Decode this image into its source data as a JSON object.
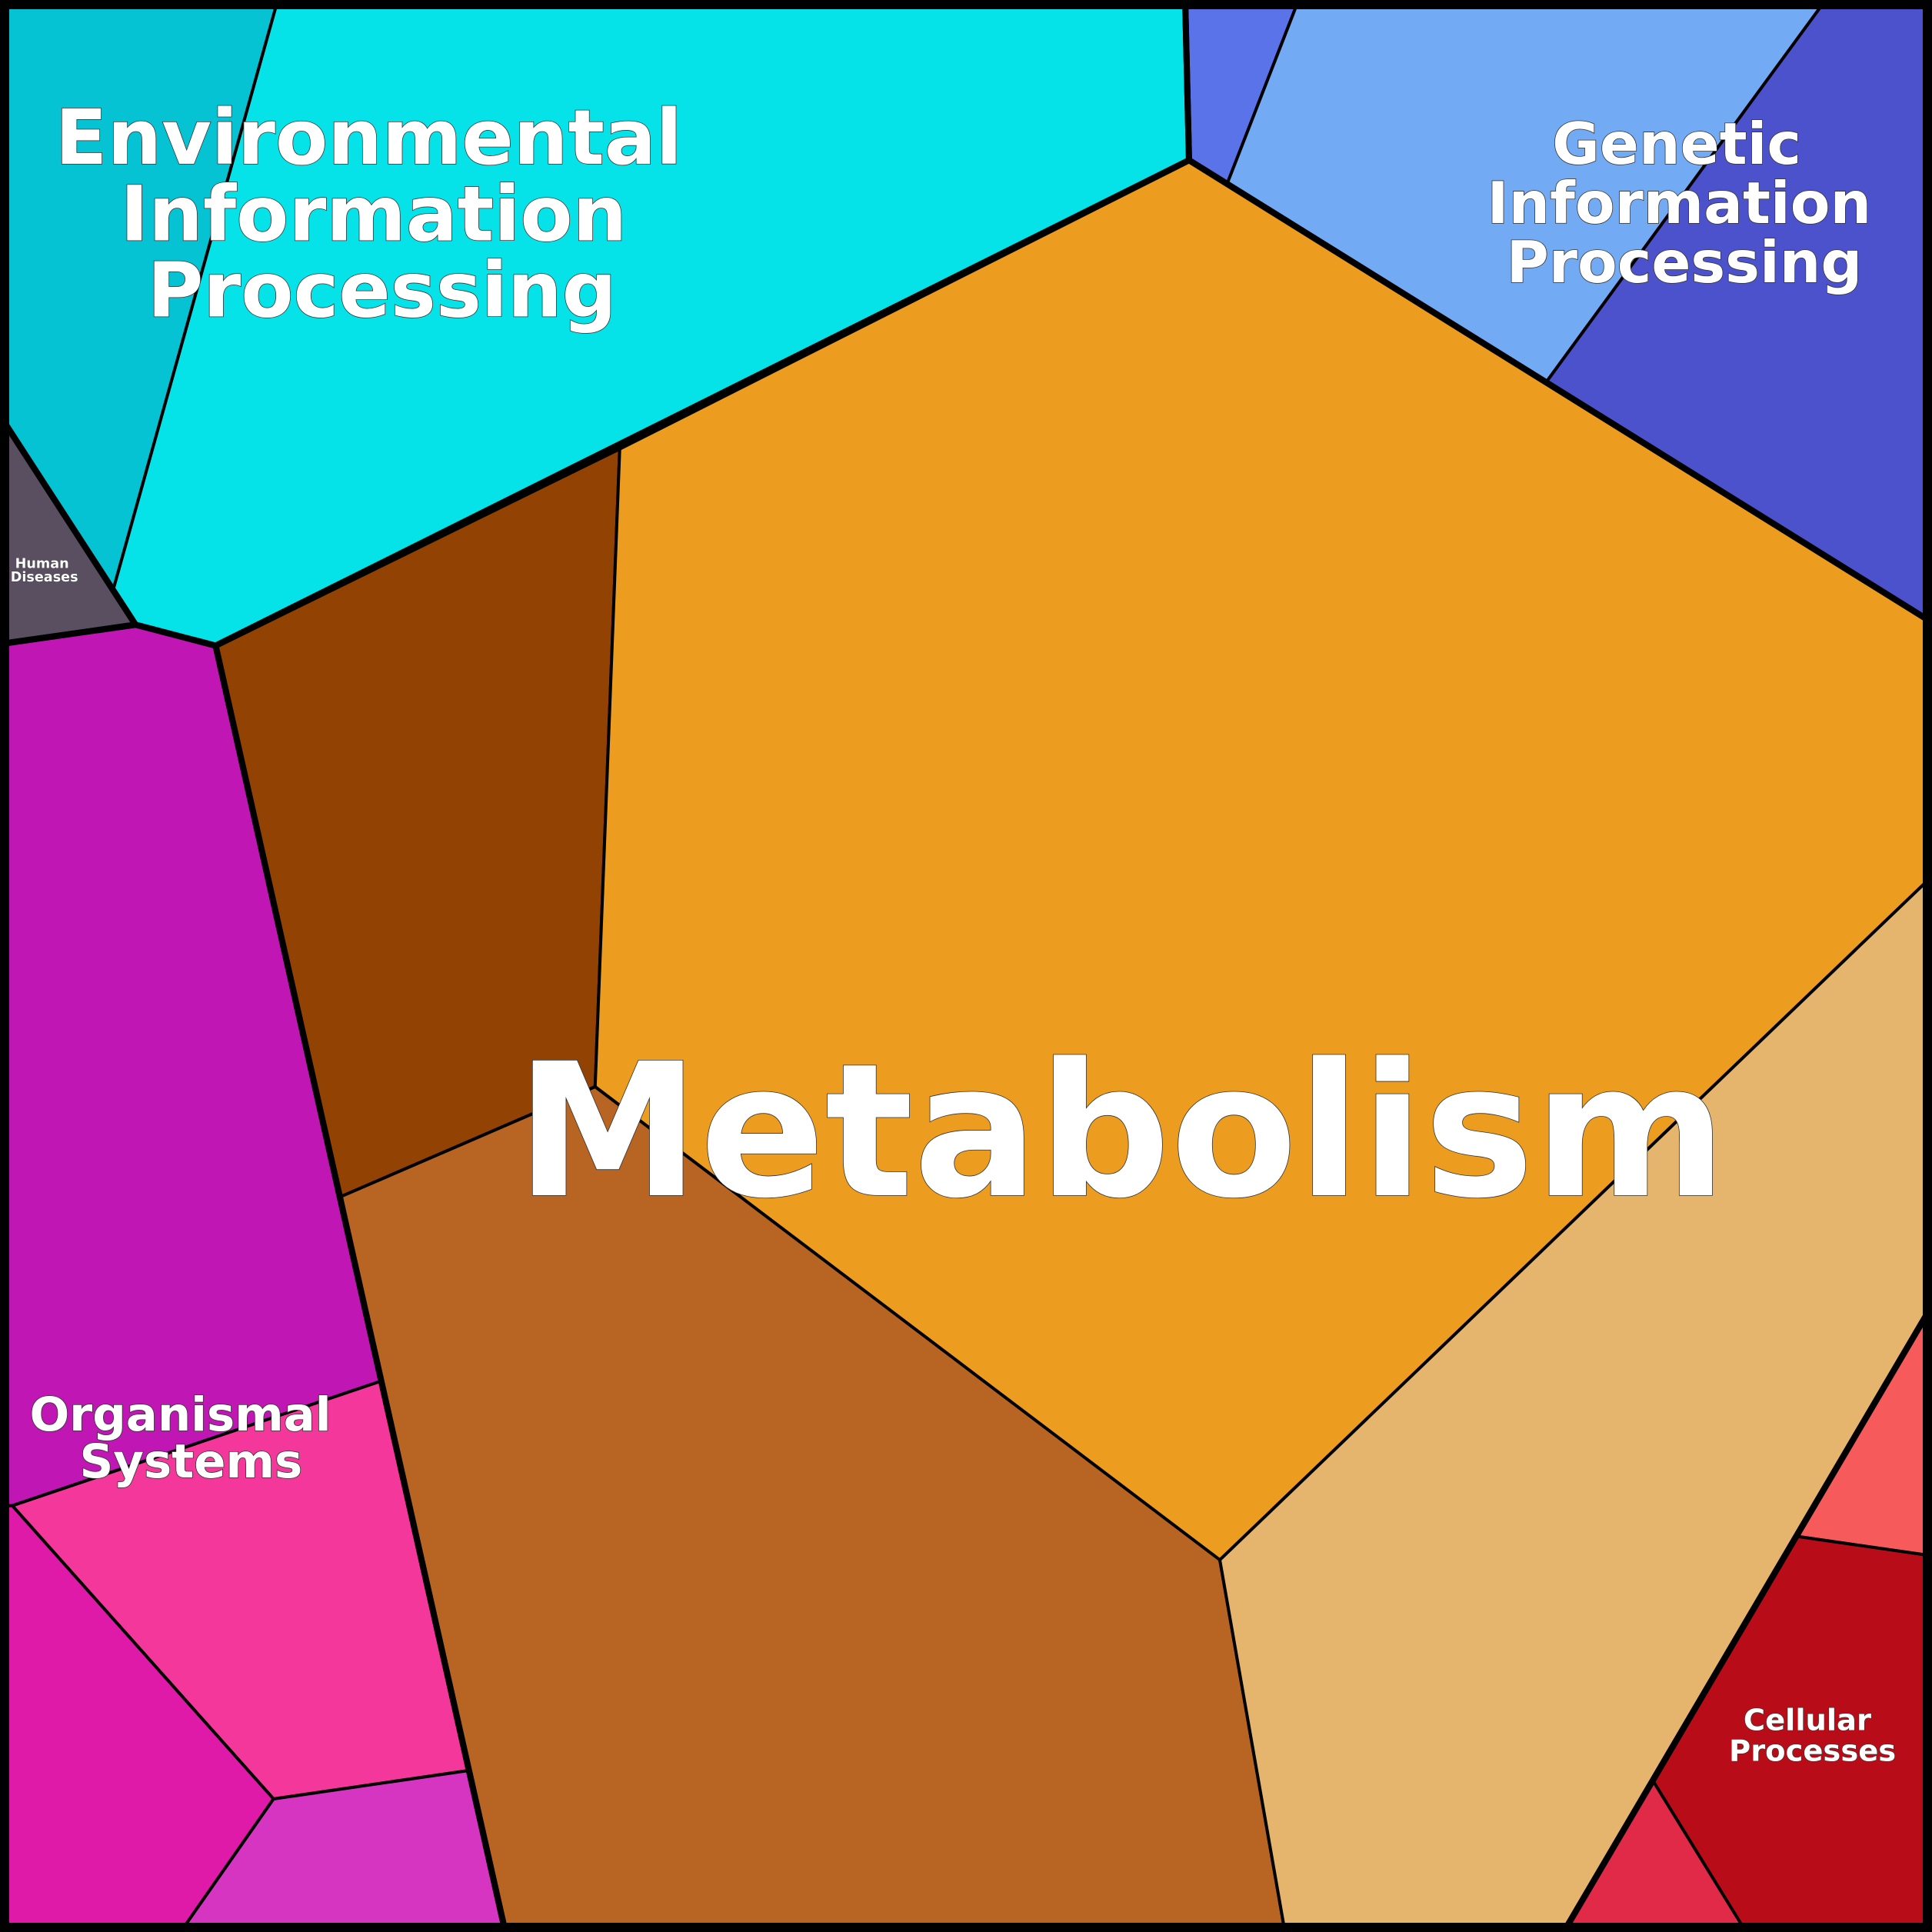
{
  "regions": [
    {
      "lines": [
        "Environmental",
        "Information",
        "Processing"
      ]
    },
    {
      "lines": [
        "Genetic",
        "Information",
        "Processing"
      ]
    },
    {
      "lines": [
        "Metabolism"
      ]
    },
    {
      "lines": [
        "Organismal",
        "Systems"
      ]
    },
    {
      "lines": [
        "Human",
        "Diseases"
      ]
    },
    {
      "lines": [
        "Cellular",
        "Processes"
      ]
    }
  ]
}
